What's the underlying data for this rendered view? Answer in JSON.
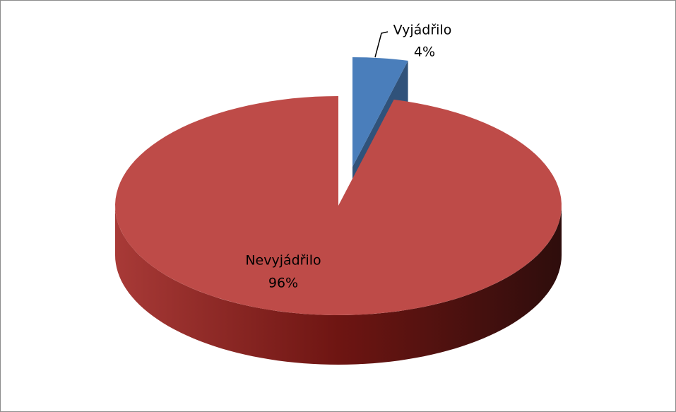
{
  "chart_data": {
    "type": "pie",
    "categories": [
      "Vyjádřilo",
      "Nevyjádřilo"
    ],
    "values": [
      4,
      96
    ],
    "value_labels": [
      "4%",
      "96%"
    ],
    "colors": [
      "#4a7ebb",
      "#be4b48"
    ],
    "exploded": [
      true,
      false
    ]
  }
}
